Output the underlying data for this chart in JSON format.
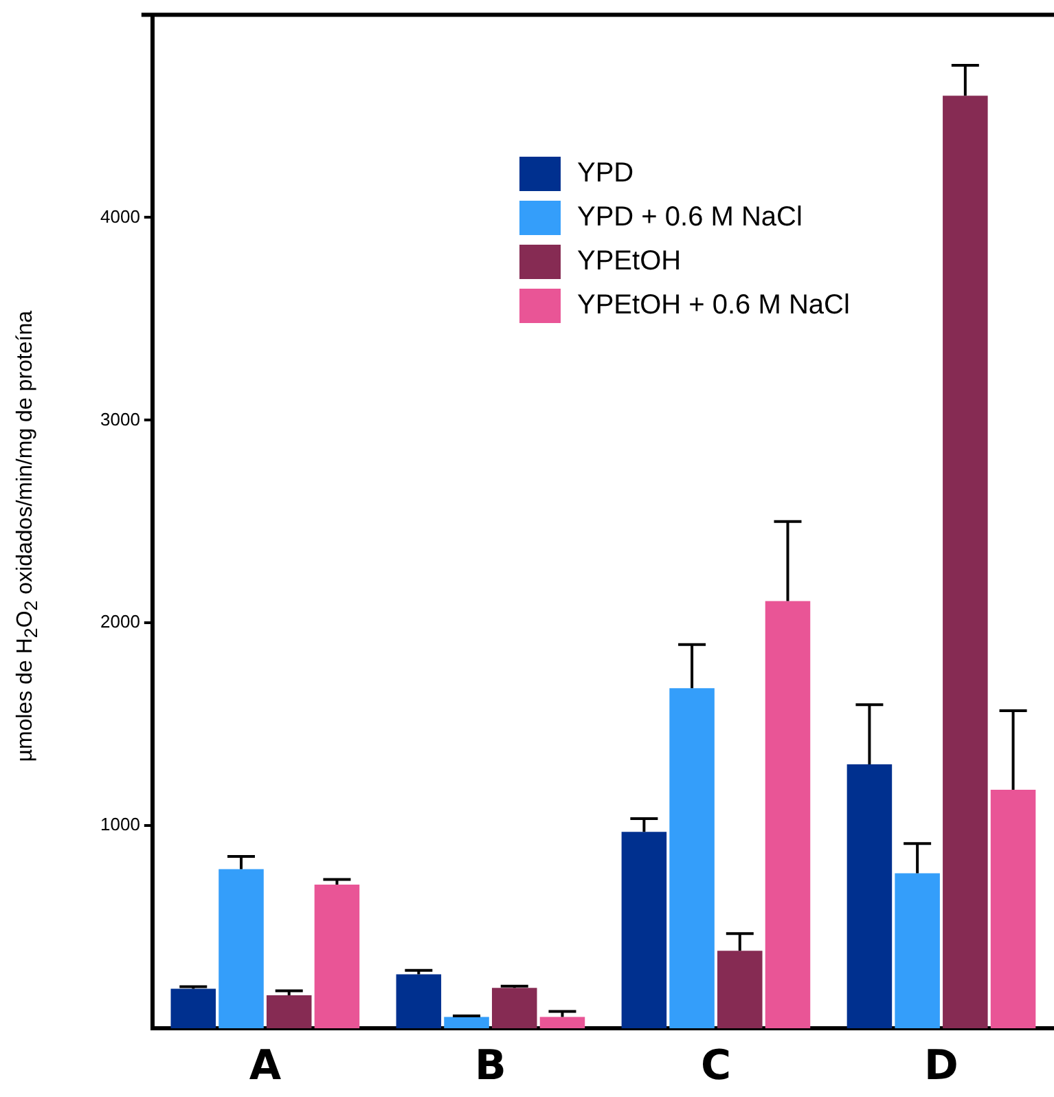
{
  "chart_data": {
    "type": "bar",
    "ylabel": "µmoles de H$_{2}$O$_{2}$ oxidados/min/mg de proteína",
    "categories": [
      "A",
      "B",
      "C",
      "D"
    ],
    "series": [
      {
        "name": "YPD",
        "color": "#00308f",
        "values": [
          195,
          266,
          969,
          1302
        ],
        "errors": [
          10,
          20,
          65,
          294
        ]
      },
      {
        "name": "YPD + 0.6 M NaCl",
        "color": "#349efa",
        "values": [
          785,
          56,
          1678,
          765
        ],
        "errors": [
          63,
          5,
          215,
          146
        ]
      },
      {
        "name": "YPEtOH",
        "color": "#862b53",
        "values": [
          163,
          199,
          382,
          4601
        ],
        "errors": [
          22,
          9,
          85,
          150
        ]
      },
      {
        "name": "YPEtOH + 0.6 M NaCl",
        "color": "#e95596",
        "values": [
          709,
          56,
          2108,
          1177
        ],
        "errors": [
          25,
          27,
          392,
          390
        ]
      }
    ],
    "ylim": [
      0,
      5000
    ],
    "yticks": [
      1000,
      2000,
      3000,
      4000
    ],
    "grid": false,
    "legend": "top"
  }
}
